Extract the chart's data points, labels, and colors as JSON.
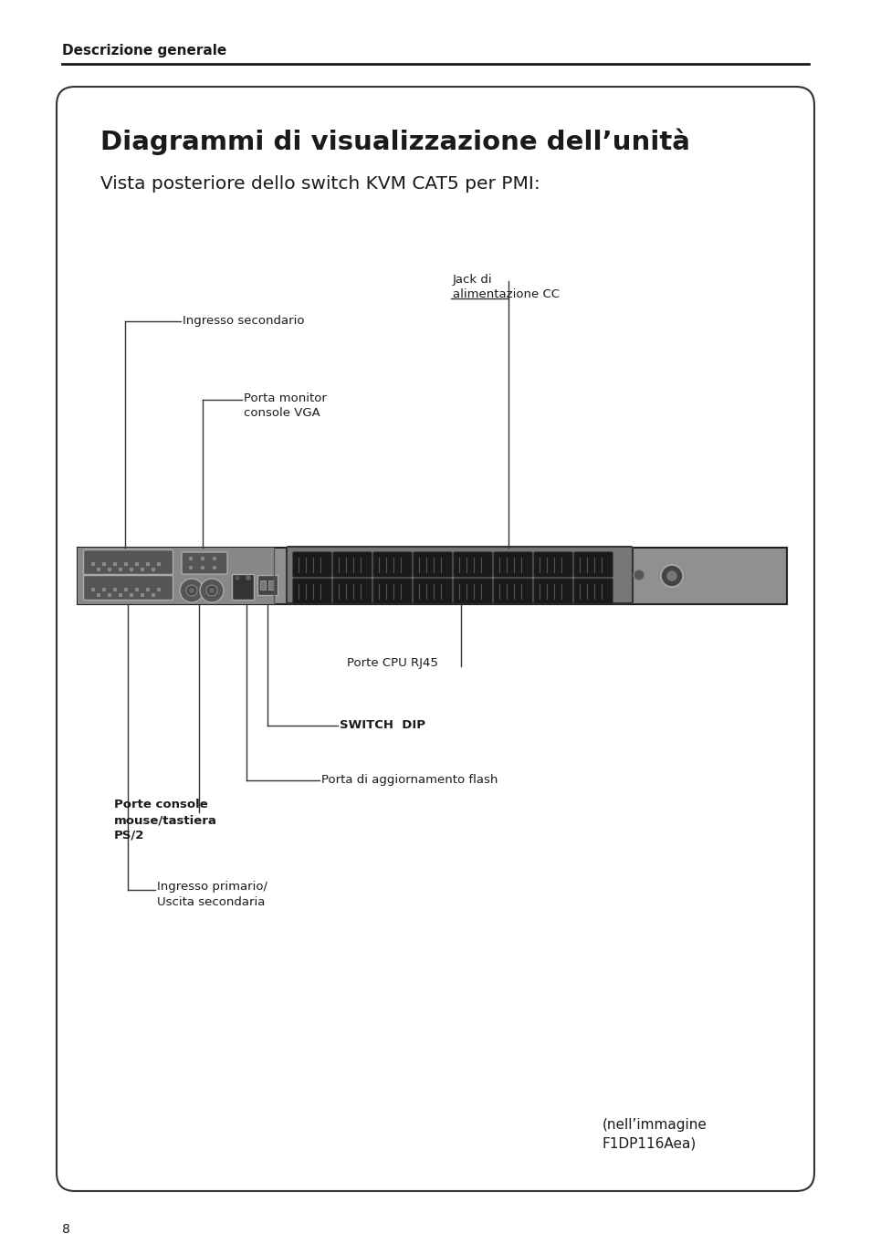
{
  "page_title": "Descrizione generale",
  "main_title": "Diagrammi di visualizzazione dell’unità",
  "subtitle": "Vista posteriore dello switch KVM CAT5 per PMI:",
  "caption": "(nell’immagine\nF1DP116Aea)",
  "page_number": "8",
  "bg_color": "#ffffff",
  "box_bg": "#ffffff",
  "box_border": "#333333",
  "device_bg": "#909090",
  "device_border": "#222222",
  "labels": {
    "ingresso_secondario": "Ingresso secondario",
    "porta_monitor": "Porta monitor\nconsole VGA",
    "jack_di": "Jack di\nalimentazione CC",
    "porte_cpu": "Porte CPU RJ45",
    "switch_dip": "SWITCH  DIP",
    "porte_console": "Porte console\nmouse/tastiera\nPS/2",
    "porta_flash": "Porta di aggiornamento flash",
    "ingresso_primario": "Ingresso primario/\nUscita secondaria"
  }
}
